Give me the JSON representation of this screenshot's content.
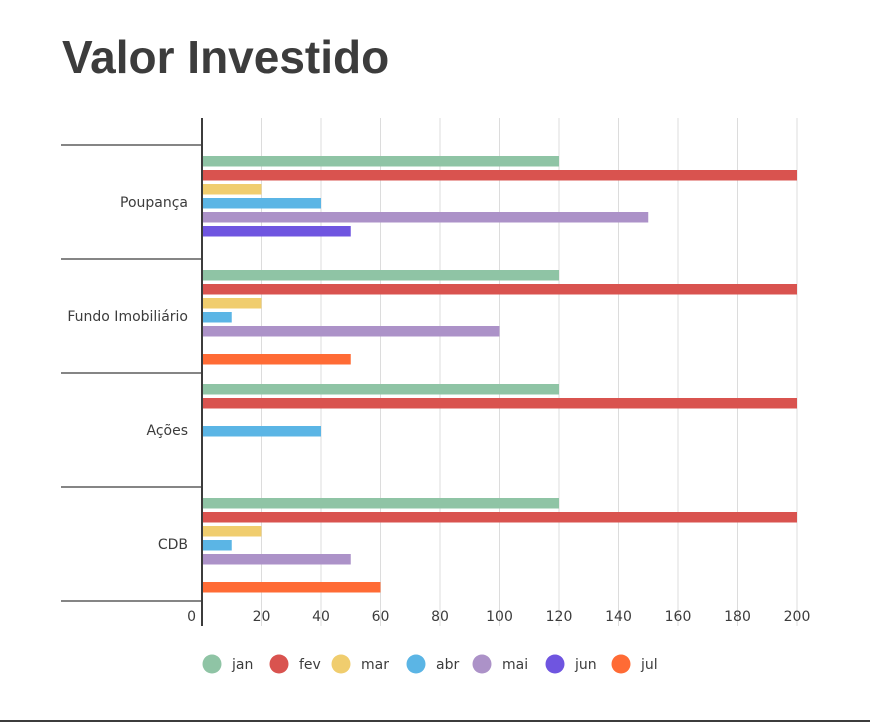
{
  "chart_data": {
    "type": "bar",
    "orientation": "horizontal",
    "title": "Valor Investido",
    "categories": [
      "Poupança",
      "Fundo Imobiliário",
      "Ações",
      "CDB"
    ],
    "series": [
      {
        "name": "jan",
        "color": "#8fc4a5",
        "values": [
          120,
          120,
          120,
          120
        ]
      },
      {
        "name": "fev",
        "color": "#d9534f",
        "values": [
          200,
          200,
          200,
          200
        ]
      },
      {
        "name": "mar",
        "color": "#f0cd6e",
        "values": [
          20,
          20,
          null,
          20
        ]
      },
      {
        "name": "abr",
        "color": "#5bb5e5",
        "values": [
          40,
          10,
          40,
          10
        ]
      },
      {
        "name": "mai",
        "color": "#ac92c8",
        "values": [
          150,
          100,
          null,
          50
        ]
      },
      {
        "name": "jun",
        "color": "#6f55e0",
        "values": [
          50,
          null,
          null,
          null
        ]
      },
      {
        "name": "jul",
        "color": "#ff6b35",
        "values": [
          null,
          50,
          null,
          60
        ]
      }
    ],
    "xlim": [
      0,
      200
    ],
    "xticks": [
      0,
      20,
      40,
      60,
      80,
      100,
      120,
      140,
      160,
      180,
      200
    ],
    "grid": true,
    "legend": "bottom"
  }
}
